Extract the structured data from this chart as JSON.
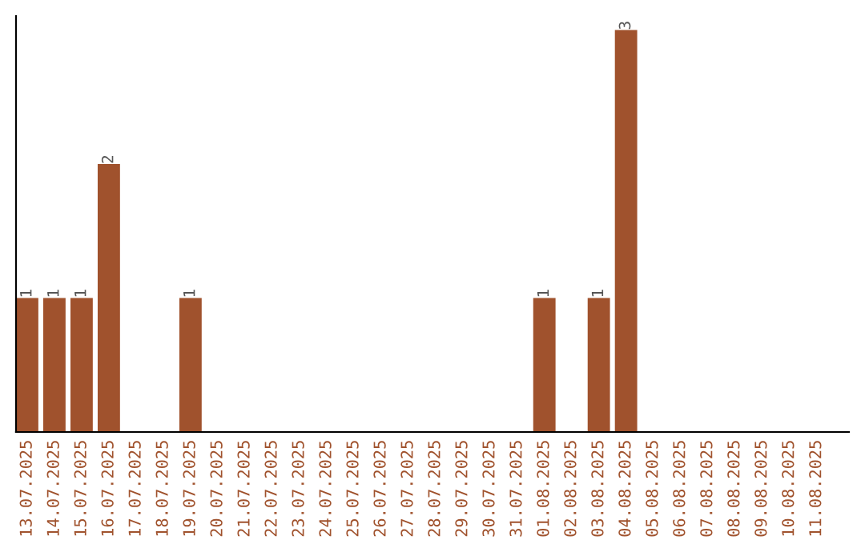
{
  "chart_data": {
    "type": "bar",
    "categories": [
      "13.07.2025",
      "14.07.2025",
      "15.07.2025",
      "16.07.2025",
      "17.07.2025",
      "18.07.2025",
      "19.07.2025",
      "20.07.2025",
      "21.07.2025",
      "22.07.2025",
      "23.07.2025",
      "24.07.2025",
      "25.07.2025",
      "26.07.2025",
      "27.07.2025",
      "28.07.2025",
      "29.07.2025",
      "30.07.2025",
      "31.07.2025",
      "01.08.2025",
      "02.08.2025",
      "03.08.2025",
      "04.08.2025",
      "05.08.2025",
      "06.08.2025",
      "07.08.2025",
      "08.08.2025",
      "09.08.2025",
      "10.08.2025",
      "11.08.2025"
    ],
    "values": [
      1,
      1,
      1,
      2,
      0,
      0,
      1,
      0,
      0,
      0,
      0,
      0,
      0,
      0,
      0,
      0,
      0,
      0,
      0,
      1,
      0,
      1,
      3,
      0,
      0,
      0,
      0,
      0,
      0,
      0
    ],
    "value_labels": [
      "1",
      "1",
      "1",
      "2",
      null,
      null,
      "1",
      null,
      null,
      null,
      null,
      null,
      null,
      null,
      null,
      null,
      null,
      null,
      null,
      "1",
      null,
      "1",
      "3",
      null,
      null,
      null,
      null,
      null,
      null,
      null
    ],
    "color": "#a0522d",
    "grid": false,
    "legend": false,
    "tick_labels": "x"
  }
}
